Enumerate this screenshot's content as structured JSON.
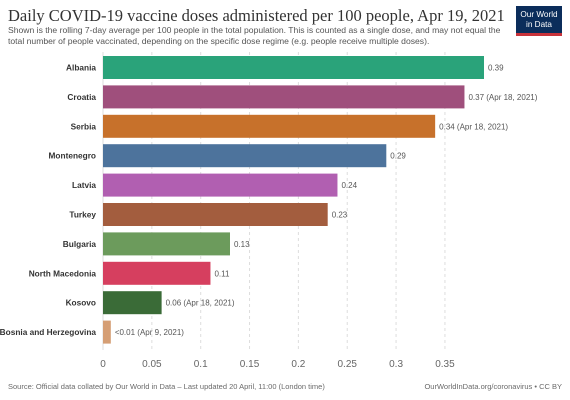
{
  "header": {
    "title": "Daily COVID-19 vaccine doses administered per 100 people, Apr 19, 2021",
    "subtitle": "Shown is the rolling 7-day average per 100 people in the total population. This is counted as a single dose, and may not equal the total number of people vaccinated, depending on the specific dose regime (e.g. people receive multiple doses).",
    "logo_line1": "Our World",
    "logo_line2": "in Data"
  },
  "footer": {
    "source": "Source: Official data collated by Our World in Data – Last updated 20 April, 11:00 (London time)",
    "url": "OurWorldInData.org/coronavirus • CC BY"
  },
  "chart_data": {
    "type": "bar",
    "orientation": "horizontal",
    "title": "Daily COVID-19 vaccine doses administered per 100 people, Apr 19, 2021",
    "xlabel": "",
    "ylabel": "",
    "xlim": [
      0,
      0.39
    ],
    "xticks": [
      0,
      0.05,
      0.1,
      0.15,
      0.2,
      0.25,
      0.3,
      0.35
    ],
    "tick_labels": [
      "0",
      "0.05",
      "0.1",
      "0.15",
      "0.2",
      "0.25",
      "0.3",
      "0.35"
    ],
    "grid": true,
    "categories": [
      "Albania",
      "Croatia",
      "Serbia",
      "Montenegro",
      "Latvia",
      "Turkey",
      "Bulgaria",
      "North Macedonia",
      "Kosovo",
      "Bosnia and Herzegovina"
    ],
    "values": [
      0.39,
      0.37,
      0.34,
      0.29,
      0.24,
      0.23,
      0.13,
      0.11,
      0.06,
      0.008
    ],
    "value_labels": [
      "0.39",
      "0.37 (Apr 18, 2021)",
      "0.34 (Apr 18, 2021)",
      "0.29",
      "0.24",
      "0.23",
      "0.13",
      "0.11",
      "0.06 (Apr 18, 2021)",
      "<0.01 (Apr 9, 2021)"
    ],
    "colors": [
      "#2aa37a",
      "#9f4f7c",
      "#c7712b",
      "#4d739c",
      "#b15fb1",
      "#a35d3e",
      "#6c9b5c",
      "#d63f5f",
      "#3a6b37",
      "#d59e74"
    ]
  }
}
